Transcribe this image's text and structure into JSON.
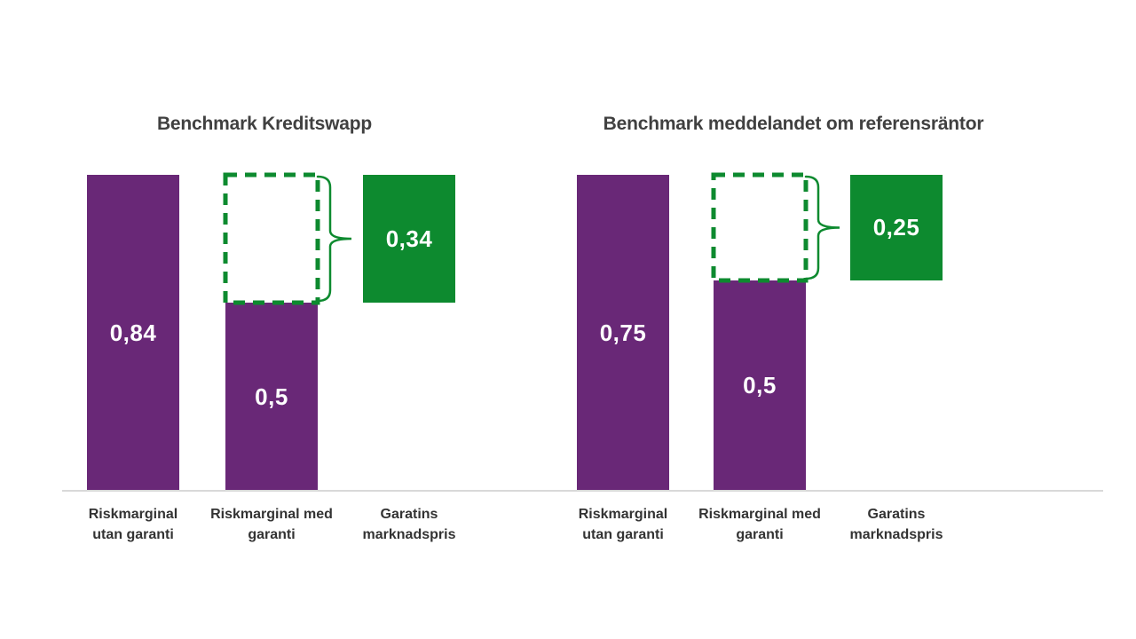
{
  "colors": {
    "purple": "#692877",
    "green": "#0d8a2f",
    "axis_line": "#d9d9d9",
    "title_text": "#404040",
    "category_text": "#333333",
    "value_text": "#ffffff"
  },
  "chart_data": [
    {
      "type": "bar",
      "title": "Benchmark Kreditswapp",
      "xlabel": "",
      "ylabel": "",
      "ylim": [
        0,
        0.84
      ],
      "grid": false,
      "legend": "none",
      "value_labels_inside": true,
      "value_format": "comma-decimal",
      "categories": [
        "Riskmarginal\nutan garanti",
        "Riskmarginal med\ngaranti",
        "Garatins\nmarknadspris"
      ],
      "series": [
        {
          "name": "Riskmarginal utan garanti",
          "value": 0.84,
          "base": 0,
          "display": "0,84",
          "color": "purple"
        },
        {
          "name": "Riskmarginal med garanti",
          "value": 0.5,
          "base": 0,
          "display": "0,5",
          "color": "purple"
        },
        {
          "name": "Garatins marknadspris",
          "value": 0.34,
          "base": 0.5,
          "display": "0,34",
          "color": "green"
        }
      ],
      "overlay": {
        "shape": "dashed-box",
        "over_series": 1,
        "from": 0.5,
        "to": 0.84,
        "brace": true,
        "color": "green"
      }
    },
    {
      "type": "bar",
      "title": "Benchmark meddelandet om referensräntor",
      "xlabel": "",
      "ylabel": "",
      "ylim": [
        0,
        0.75
      ],
      "grid": false,
      "legend": "none",
      "value_labels_inside": true,
      "value_format": "comma-decimal",
      "categories": [
        "Riskmarginal\nutan garanti",
        "Riskmarginal med\ngaranti",
        "Garatins\nmarknadspris"
      ],
      "series": [
        {
          "name": "Riskmarginal utan garanti",
          "value": 0.75,
          "base": 0,
          "display": "0,75",
          "color": "purple"
        },
        {
          "name": "Riskmarginal med garanti",
          "value": 0.5,
          "base": 0,
          "display": "0,5",
          "color": "purple"
        },
        {
          "name": "Garatins marknadspris",
          "value": 0.25,
          "base": 0.5,
          "display": "0,25",
          "color": "green"
        }
      ],
      "overlay": {
        "shape": "dashed-box",
        "over_series": 1,
        "from": 0.5,
        "to": 0.75,
        "brace": true,
        "color": "green"
      }
    }
  ]
}
